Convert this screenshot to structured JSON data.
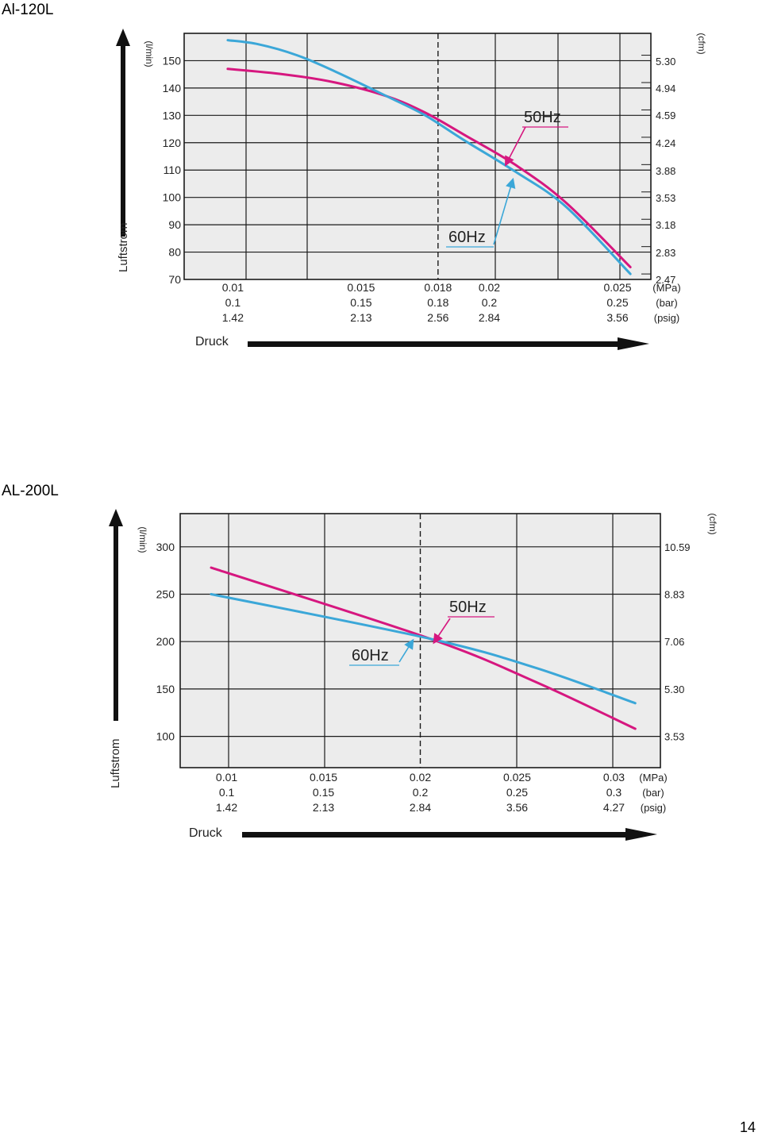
{
  "page": {
    "number": "14"
  },
  "chart_data": [
    {
      "type": "line",
      "title": "Al-120L",
      "ylabel": "Luftstrom",
      "y_unit_left": "(l/min)",
      "y_unit_right": "(cfm)",
      "xlabel": "Druck",
      "ylim": [
        70,
        160
      ],
      "xlim": [
        0.0081,
        0.0263
      ],
      "y_ticks": [
        70,
        80,
        90,
        100,
        110,
        120,
        130,
        140,
        150
      ],
      "y_tick_labels": [
        "70",
        "80",
        "90",
        "100",
        "110",
        "120",
        "130",
        "140",
        "150"
      ],
      "y_right_ticks": [
        72,
        82,
        92,
        102,
        112,
        122,
        132,
        142,
        152
      ],
      "y_right_labels": [
        "2.47",
        "2.83",
        "3.18",
        "3.53",
        "3.88",
        "4.24",
        "4.59",
        "4.94",
        "5.30"
      ],
      "x_ticks": [
        0.01,
        0.015,
        0.018,
        0.02,
        0.025
      ],
      "x_tick_labels": {
        "mpa": [
          "0.01",
          "0.015",
          "0.018",
          "0.02",
          "0.025"
        ],
        "bar": [
          "0.1",
          "0.15",
          "0.18",
          "0.2",
          "0.25"
        ],
        "psig": [
          "1.42",
          "2.13",
          "2.56",
          "2.84",
          "3.56"
        ]
      },
      "x_unit_labels": [
        "(MPa)",
        "(bar)",
        "(psig)"
      ],
      "reference_x": 0.018,
      "series": [
        {
          "name": "50Hz",
          "color": "#d6177f",
          "x": [
            0.0098,
            0.012,
            0.014,
            0.016,
            0.0175,
            0.019,
            0.021,
            0.023,
            0.0255
          ],
          "y": [
            147,
            145,
            142,
            137,
            131,
            123,
            112,
            98,
            74.5
          ]
        },
        {
          "name": "60Hz",
          "color": "#3ba7d8",
          "x": [
            0.0098,
            0.011,
            0.0125,
            0.014,
            0.016,
            0.0175,
            0.019,
            0.021,
            0.023,
            0.0255
          ],
          "y": [
            157.5,
            156,
            152,
            146,
            137,
            130,
            121,
            109.5,
            96.5,
            72
          ]
        }
      ],
      "legend": [
        "50Hz",
        "60Hz"
      ]
    },
    {
      "type": "line",
      "title": "AL-200L",
      "ylabel": "Luftstrom",
      "y_unit_left": "(l/min)",
      "y_unit_right": "(cfm)",
      "xlabel": "Druck",
      "ylim": [
        67,
        335
      ],
      "xlim": [
        0.0076,
        0.0324
      ],
      "y_ticks": [
        100,
        150,
        200,
        250,
        300
      ],
      "y_tick_labels": [
        "100",
        "150",
        "200",
        "250",
        "300"
      ],
      "y_right_ticks": [
        100,
        150,
        200,
        250,
        300
      ],
      "y_right_labels": [
        "3.53",
        "5.30",
        "7.06",
        "8.83",
        "10.59"
      ],
      "x_ticks": [
        0.01,
        0.015,
        0.02,
        0.025,
        0.03
      ],
      "x_tick_labels": {
        "mpa": [
          "0.01",
          "0.015",
          "0.02",
          "0.025",
          "0.03"
        ],
        "bar": [
          "0.1",
          "0.15",
          "0.2",
          "0.25",
          "0.3"
        ],
        "psig": [
          "1.42",
          "2.13",
          "2.84",
          "3.56",
          "4.27"
        ]
      },
      "x_unit_labels": [
        "(MPa)",
        "(bar)",
        "(psig)"
      ],
      "reference_x": 0.02,
      "series": [
        {
          "name": "50Hz",
          "color": "#d6177f",
          "x": [
            0.0092,
            0.0205,
            0.026,
            0.0311
          ],
          "y": [
            278,
            203,
            157,
            108
          ]
        },
        {
          "name": "60Hz",
          "color": "#3ba7d8",
          "x": [
            0.0092,
            0.0205,
            0.026,
            0.0311
          ],
          "y": [
            250,
            203,
            172,
            135
          ]
        }
      ],
      "legend": [
        "50Hz",
        "60Hz"
      ]
    }
  ]
}
